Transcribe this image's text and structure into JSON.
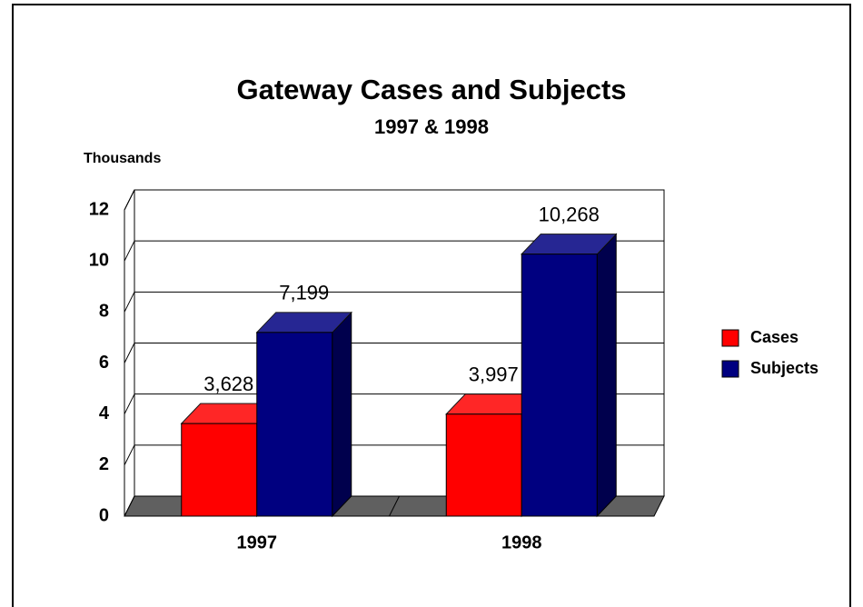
{
  "chart_data": {
    "type": "bar3d",
    "title": "Gateway Cases and Subjects",
    "subtitle": "1997 & 1998",
    "y_label": "Thousands",
    "categories": [
      "1997",
      "1998"
    ],
    "series": [
      {
        "name": "Cases",
        "color": "#ff0000",
        "values": [
          3.628,
          3.997
        ],
        "value_labels": [
          "3,628",
          "3,997"
        ]
      },
      {
        "name": "Subjects",
        "color": "#000080",
        "values": [
          7.199,
          10.268
        ],
        "value_labels": [
          "7,199",
          "10,268"
        ]
      }
    ],
    "ylim": [
      0,
      12
    ],
    "yticks": [
      0,
      2,
      4,
      6,
      8,
      10,
      12
    ],
    "grid": true,
    "legend": "right"
  }
}
